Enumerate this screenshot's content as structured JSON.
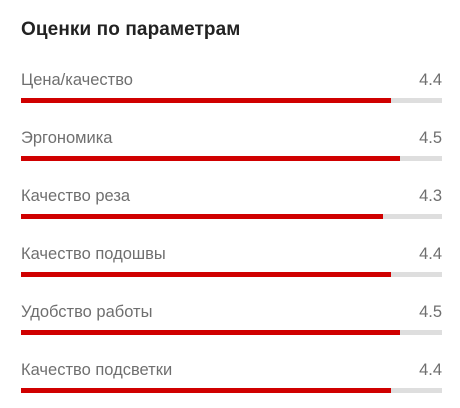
{
  "section": {
    "title": "Оценки по параметрам",
    "scale_max": 5,
    "accent_color": "#d00000",
    "track_color": "#dedede"
  },
  "ratings": [
    {
      "label": "Цена/качество",
      "value": "4.4",
      "fill": 0.88
    },
    {
      "label": "Эргономика",
      "value": "4.5",
      "fill": 0.9
    },
    {
      "label": "Качество реза",
      "value": "4.3",
      "fill": 0.86
    },
    {
      "label": "Качество подошвы",
      "value": "4.4",
      "fill": 0.88
    },
    {
      "label": "Удобство работы",
      "value": "4.5",
      "fill": 0.9
    },
    {
      "label": "Качество подсветки",
      "value": "4.4",
      "fill": 0.88
    }
  ]
}
